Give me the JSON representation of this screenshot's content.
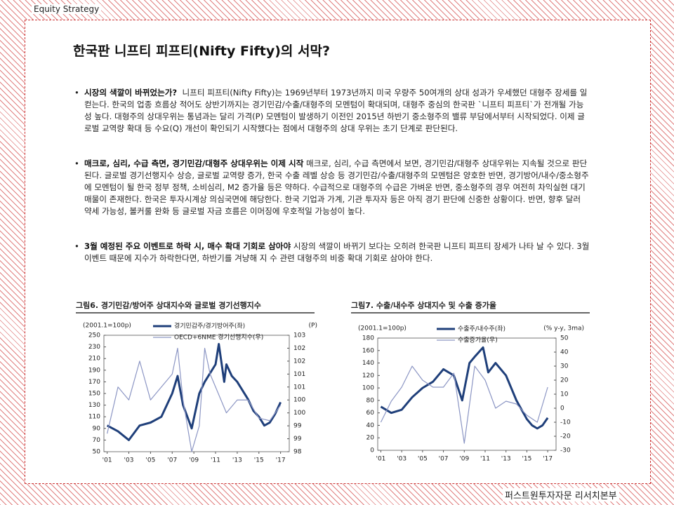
{
  "header": "Equity Strategy",
  "title": "한국판 니프티 피프티(Nifty Fifty)의 서막?",
  "bullets": [
    {
      "lead": "시장의 색깔이 바뀌었는가?",
      "text": "니프티 피프티(Nifty Fifty)는 1969년부터 1973년까지 미국 우량주 50여개의 상대 성과가 우세했던 대형주 장세를 일컫는다. 한국의 업종 흐름상 적어도 상반기까지는 경기민감/수출/대형주의 모멘텀이 확대되며, 대형주 중심의 한국판 `니프티 피프티`가 전개될 가능성 높다. 대형주의 상대우위는 통념과는 달리 가격(P) 모멘텀이 발생하기 이전인 2015년 하반기 중소형주의 밸류 부담에서부터 시작되었다. 이제 글로벌 교역량 확대 등 수요(Q) 개선이 확인되기 시작했다는 점에서 대형주의 상대 우위는 초기 단계로 판단된다."
    },
    {
      "lead": "매크로, 심리, 수급 측면, 경기민감/대형주 상대우위는 이제 시작",
      "text": "매크로, 심리, 수급 측면에서 보면, 경기민감/대형주 상대우위는 지속될 것으로 판단된다. 글로벌 경기선행지수 상승, 글로벌 교역량 증가, 한국 수출 레벨 상승 등 경기민감/수출/대형주의 모멘텀은 양호한 반면, 경기방어/내수/중소형주에 모멘텀이 될 한국 정부 정책, 소비심리, M2 증가율 등은 약하다. 수급적으로 대형주의 수급은 가벼운 반면, 중소형주의 경우 여전히 차익실현 대기 매물이 존재한다. 한국은 투자시계상 의심국면에 해당한다. 한국 기업과 가계, 기관 투자자 등은 아직 경기 판단에 신중한 상황이다. 반면, 향후 달러 약세 가능성, 볼커룰 완화 등 글로벌 자금 흐름은 이머징에 우호적일 가능성이 높다."
    },
    {
      "lead": "3월 예정된 주요 이벤트로 하락 시, 매수 확대 기회로 삼아야",
      "text": "시장의 색깔이 바뀌기 보다는 오히려 한국판 니프티 피프티 장세가 나타 날 수 있다. 3월 이벤트 때문에 지수가 하락한다면, 하반기를 겨냥해 지 수 관련 대형주의 비중 확대 기회로 삼아야 한다."
    }
  ],
  "chart_data": [
    {
      "type": "line",
      "title": "그림6. 경기민감/방어주 상대지수와 글로벌 경기선행지수",
      "note": "(2001.1=100p)",
      "y2_unit": "(P)",
      "xlim": [
        2000.7,
        2017.8
      ],
      "xticks": [
        {
          "value": 2001,
          "label": "'01"
        },
        {
          "value": 2003,
          "label": "'03"
        },
        {
          "value": 2005,
          "label": "'05"
        },
        {
          "value": 2007,
          "label": "'07"
        },
        {
          "value": 2009,
          "label": "'09"
        },
        {
          "value": 2011,
          "label": "'11"
        },
        {
          "value": 2013,
          "label": "'13"
        },
        {
          "value": 2015,
          "label": "'15"
        },
        {
          "value": 2017,
          "label": "'17"
        }
      ],
      "ylim": [
        50,
        250
      ],
      "yticks": [
        250,
        230,
        210,
        190,
        170,
        150,
        130,
        110,
        90,
        70,
        50
      ],
      "y2lim": [
        98.5,
        103
      ],
      "y2ticks": [
        103,
        {
          "value": 102.5,
          "label": "102"
        },
        102,
        {
          "value": 101.5,
          "label": "101"
        },
        101,
        {
          "value": 100.5,
          "label": "100"
        },
        100,
        {
          "value": 99.5,
          "label": "99"
        },
        99,
        {
          "value": 98.5,
          "label": "98"
        }
      ],
      "series": [
        {
          "name": "경기민감주/경기방어주(좌)",
          "color": "#1f3f7a",
          "line_width": 3,
          "x": [
            2001,
            2002,
            2003,
            2004,
            2005,
            2006,
            2007,
            2007.5,
            2008,
            2008.8,
            2009.5,
            2010,
            2011,
            2011.3,
            2011.8,
            2012,
            2012.5,
            2013,
            2014,
            2014.5,
            2015,
            2015.5,
            2016,
            2016.5,
            2017
          ],
          "values": [
            95,
            85,
            70,
            95,
            100,
            110,
            150,
            180,
            130,
            90,
            150,
            170,
            200,
            235,
            170,
            200,
            180,
            170,
            140,
            120,
            110,
            95,
            100,
            115,
            135
          ]
        },
        {
          "name": "OECD+6NME 경기선행지수(우)",
          "color": "#8c96c4",
          "line_width": 1.2,
          "axis": "y2",
          "x": [
            2001,
            2002,
            2003,
            2004,
            2005,
            2006,
            2007,
            2007.5,
            2008,
            2008.8,
            2009.5,
            2010,
            2010.5,
            2011,
            2012,
            2013,
            2014,
            2015,
            2016,
            2017
          ],
          "values": [
            99.2,
            101,
            100.5,
            102,
            100.5,
            101,
            101.5,
            102.5,
            100.5,
            98.5,
            99.5,
            102.5,
            101.5,
            101,
            100,
            100.5,
            100.5,
            99.8,
            99.7,
            100.3
          ]
        }
      ]
    },
    {
      "type": "line",
      "title": "그림7. 수출/내수주 상대지수 및 수출 증가율",
      "note": "(2001.1=100p)",
      "y2_unit": "(% y-y, 3ma)",
      "xlim": [
        2000.7,
        2017.8
      ],
      "xticks": [
        {
          "value": 2001,
          "label": "'01"
        },
        {
          "value": 2003,
          "label": "'03"
        },
        {
          "value": 2005,
          "label": "'05"
        },
        {
          "value": 2007,
          "label": "'07"
        },
        {
          "value": 2009,
          "label": "'09"
        },
        {
          "value": 2011,
          "label": "'11"
        },
        {
          "value": 2013,
          "label": "'13"
        },
        {
          "value": 2015,
          "label": "'15"
        },
        {
          "value": 2017,
          "label": "'17"
        }
      ],
      "ylim": [
        0,
        180
      ],
      "yticks": [
        180,
        160,
        140,
        120,
        100,
        80,
        60,
        40,
        20,
        0
      ],
      "y2lim": [
        -30,
        50
      ],
      "y2ticks": [
        50,
        40,
        30,
        20,
        10,
        0,
        -10,
        -20,
        -30
      ],
      "series": [
        {
          "name": "수출주/내수주(좌)",
          "color": "#1f3f7a",
          "line_width": 3,
          "x": [
            2001,
            2002,
            2003,
            2004,
            2005,
            2006,
            2007,
            2008,
            2008.8,
            2009.5,
            2010,
            2010.8,
            2011.3,
            2012,
            2013,
            2014,
            2015,
            2015.5,
            2016,
            2016.5,
            2017
          ],
          "values": [
            70,
            60,
            65,
            85,
            100,
            110,
            130,
            120,
            80,
            140,
            150,
            165,
            125,
            140,
            120,
            80,
            50,
            40,
            35,
            40,
            52
          ]
        },
        {
          "name": "수출증가율(우)",
          "color": "#8c96c4",
          "line_width": 1.2,
          "axis": "y2",
          "x": [
            2001,
            2002,
            2003,
            2004,
            2005,
            2006,
            2007,
            2008,
            2009,
            2010,
            2011,
            2012,
            2013,
            2014,
            2015,
            2016,
            2017
          ],
          "values": [
            -10,
            5,
            15,
            30,
            20,
            15,
            15,
            25,
            -25,
            30,
            20,
            0,
            5,
            3,
            -5,
            -10,
            15
          ]
        }
      ]
    }
  ],
  "footer": "퍼스트원투자자문 리서치본부"
}
